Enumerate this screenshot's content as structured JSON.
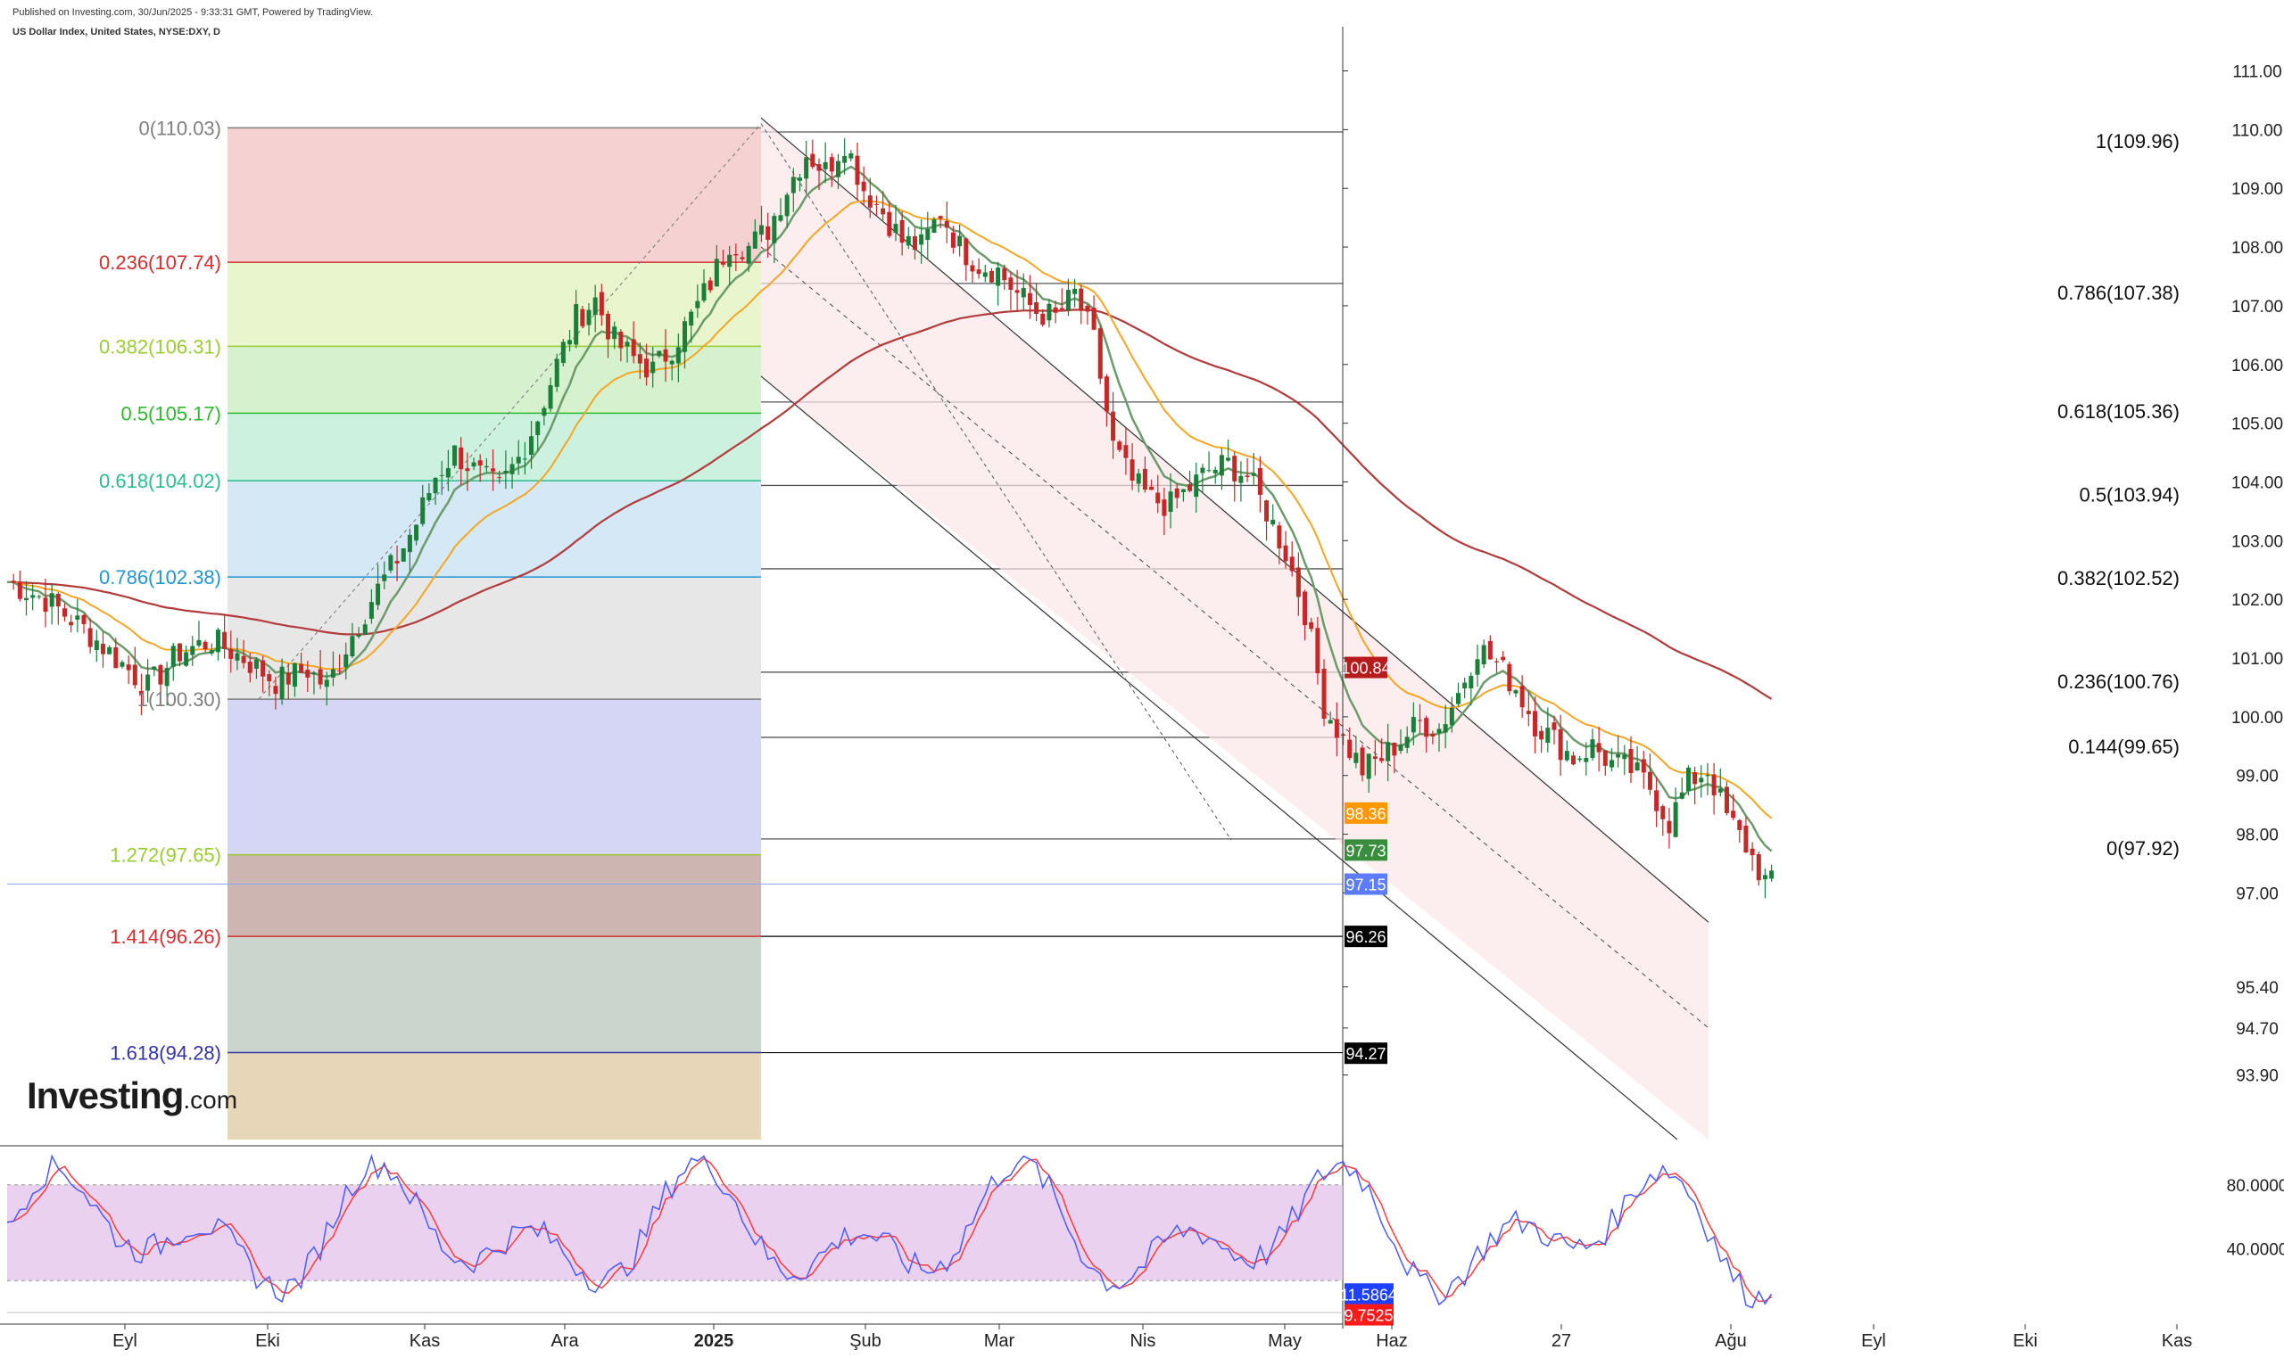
{
  "header": {
    "published": "Published on Investing.com, 30/Jun/2025 - 9:33:31 GMT, Powered by TradingView.",
    "symbol": "US Dollar Index, United States, NYSE:DXY, D"
  },
  "logo": {
    "main": "Investing",
    "suffix": ".com"
  },
  "chart_data": [
    {
      "type": "candlestick",
      "title": "US Dollar Index, United States, NYSE:DXY, D",
      "ylim": [
        92.8,
        111.6
      ],
      "y_ticks": [
        "111.00",
        "110.00",
        "109.00",
        "108.00",
        "107.00",
        "106.00",
        "105.00",
        "104.00",
        "103.00",
        "102.00",
        "101.00",
        "100.00",
        "99.00",
        "98.00",
        "97.00",
        "95.40",
        "94.70",
        "93.90"
      ],
      "x_ticks": [
        "Eyl",
        "Eki",
        "Kas",
        "Ara",
        "2025",
        "Şub",
        "Mar",
        "Nis",
        "May",
        "Haz",
        "27",
        "Ağu",
        "Eyl",
        "Eki",
        "Kas"
      ],
      "close_series": [
        [
          0,
          102.3
        ],
        [
          6,
          102.0
        ],
        [
          12,
          101.5
        ],
        [
          17,
          101.0
        ],
        [
          22,
          100.5
        ],
        [
          27,
          101.1
        ],
        [
          32,
          101.3
        ],
        [
          37,
          101.0
        ],
        [
          42,
          100.6
        ],
        [
          47,
          100.8
        ],
        [
          50,
          100.5
        ],
        [
          53,
          101.2
        ],
        [
          57,
          102.0
        ],
        [
          61,
          102.7
        ],
        [
          64,
          103.3
        ],
        [
          67,
          104.1
        ],
        [
          70,
          104.5
        ],
        [
          74,
          104.1
        ],
        [
          77,
          103.9
        ],
        [
          80,
          104.4
        ],
        [
          83,
          105.1
        ],
        [
          86,
          106.0
        ],
        [
          89,
          106.8
        ],
        [
          92,
          107.1
        ],
        [
          95,
          106.4
        ],
        [
          98,
          106.1
        ],
        [
          101,
          105.9
        ],
        [
          104,
          106.3
        ],
        [
          107,
          106.8
        ],
        [
          110,
          107.4
        ],
        [
          113,
          108.1
        ],
        [
          116,
          108.0
        ],
        [
          119,
          108.3
        ],
        [
          122,
          109.0
        ],
        [
          125,
          109.6
        ],
        [
          128,
          109.3
        ],
        [
          131,
          109.8
        ],
        [
          134,
          109.0
        ],
        [
          137,
          108.6
        ],
        [
          140,
          108.1
        ],
        [
          143,
          108.0
        ],
        [
          146,
          108.6
        ],
        [
          149,
          108.0
        ],
        [
          152,
          107.7
        ],
        [
          155,
          107.6
        ],
        [
          158,
          107.2
        ],
        [
          161,
          106.9
        ],
        [
          164,
          106.8
        ],
        [
          167,
          107.2
        ],
        [
          170,
          106.4
        ],
        [
          173,
          104.6
        ],
        [
          176,
          104.0
        ],
        [
          179,
          103.7
        ],
        [
          182,
          103.6
        ],
        [
          185,
          103.9
        ],
        [
          188,
          104.2
        ],
        [
          191,
          104.3
        ],
        [
          194,
          104.1
        ],
        [
          197,
          103.5
        ],
        [
          200,
          102.8
        ],
        [
          203,
          101.8
        ],
        [
          206,
          100.2
        ],
        [
          209,
          99.6
        ],
        [
          212,
          99.1
        ],
        [
          215,
          99.3
        ],
        [
          218,
          99.6
        ],
        [
          221,
          99.9
        ],
        [
          224,
          99.8
        ],
        [
          227,
          100.4
        ],
        [
          230,
          101.2
        ],
        [
          233,
          100.9
        ],
        [
          236,
          100.5
        ],
        [
          239,
          99.9
        ],
        [
          242,
          99.6
        ],
        [
          245,
          99.3
        ],
        [
          248,
          99.5
        ],
        [
          251,
          99.2
        ],
        [
          254,
          99.1
        ],
        [
          257,
          98.8
        ],
        [
          260,
          98.2
        ],
        [
          263,
          98.9
        ],
        [
          266,
          99.1
        ],
        [
          269,
          98.3
        ],
        [
          272,
          97.8
        ],
        [
          275,
          97.2
        ],
        [
          276,
          97.15
        ]
      ],
      "indicators": {
        "ema_fast_last": 97.73,
        "ema_mid_last": 98.36,
        "ema_slow_last": 100.84,
        "current_price": 97.15
      },
      "fib_left": [
        {
          "label": "0(110.03)",
          "value": 110.03,
          "color": "#7f7f7f"
        },
        {
          "label": "0.236(107.74)",
          "value": 107.74,
          "color": "#d32f2f"
        },
        {
          "label": "0.382(106.31)",
          "value": 106.31,
          "color": "#9acd32"
        },
        {
          "label": "0.5(105.17)",
          "value": 105.17,
          "color": "#2eb82e"
        },
        {
          "label": "0.618(104.02)",
          "value": 104.02,
          "color": "#2bbd8a"
        },
        {
          "label": "0.786(102.38)",
          "value": 102.38,
          "color": "#2196d3"
        },
        {
          "label": "1(100.30)",
          "value": 100.3,
          "color": "#7f7f7f"
        },
        {
          "label": "1.272(97.65)",
          "value": 97.65,
          "color": "#9acd32"
        },
        {
          "label": "1.414(96.26)",
          "value": 96.26,
          "color": "#d32f2f"
        },
        {
          "label": "1.618(94.28)",
          "value": 94.28,
          "color": "#3333aa"
        }
      ],
      "fib_right": [
        {
          "label": "1(109.96)",
          "value": 109.96
        },
        {
          "label": "0.786(107.38)",
          "value": 107.38
        },
        {
          "label": "0.618(105.36)",
          "value": 105.36
        },
        {
          "label": "0.5(103.94)",
          "value": 103.94
        },
        {
          "label": "0.382(102.52)",
          "value": 102.52
        },
        {
          "label": "0.236(100.76)",
          "value": 100.76
        },
        {
          "label": "0.144(99.65)",
          "value": 99.65
        },
        {
          "label": "0(97.92)",
          "value": 97.92
        }
      ],
      "price_tags": [
        {
          "label": "100.84",
          "value": 100.84,
          "color": "#b71c1c"
        },
        {
          "label": "98.36",
          "value": 98.36,
          "color": "#ff9800"
        },
        {
          "label": "97.73",
          "value": 97.73,
          "color": "#388e3c"
        },
        {
          "label": "97.15",
          "value": 97.15,
          "color": "#5c7cfa"
        },
        {
          "label": "96.26",
          "value": 96.26,
          "color": "#000000"
        },
        {
          "label": "94.27",
          "value": 94.27,
          "color": "#000000"
        }
      ]
    },
    {
      "type": "line",
      "title": "",
      "ylim": [
        0,
        100
      ],
      "y_ticks": [
        "80.0000",
        "40.0000"
      ],
      "overbought": 80,
      "oversold": 20,
      "k_last": 11.5864,
      "d_last": 9.7525,
      "tags": [
        {
          "label": "11.5864",
          "color": "#1e40ff"
        },
        {
          "label": "9.7525",
          "color": "#ff1a1a"
        }
      ]
    }
  ]
}
